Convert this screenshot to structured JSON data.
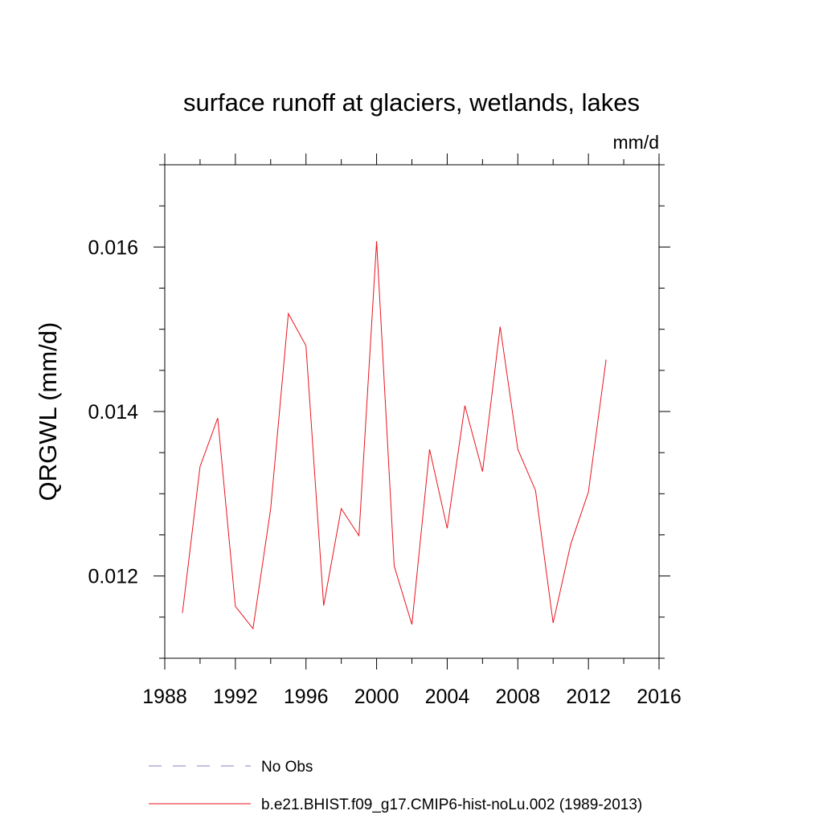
{
  "chart_data": {
    "type": "line",
    "title": "surface runoff at glaciers, wetlands, lakes",
    "units": "mm/d",
    "ylabel": "QRGWL  (mm/d)",
    "xlabel": "",
    "xlim": [
      1988,
      2016
    ],
    "ylim": [
      0.011,
      0.017
    ],
    "x_ticks": [
      1988,
      1992,
      1996,
      2000,
      2004,
      2008,
      2012,
      2016
    ],
    "x_tick_labels": [
      "1988",
      "1992",
      "1996",
      "2000",
      "2004",
      "2008",
      "2012",
      "2016"
    ],
    "y_ticks": [
      0.012,
      0.014,
      0.016
    ],
    "y_tick_labels": [
      "0.012",
      "0.014",
      "0.016"
    ],
    "grid": false,
    "legend_position": "bottom",
    "series": [
      {
        "name": "No Obs",
        "color": "#8080c0",
        "dash": true,
        "x": [],
        "y": []
      },
      {
        "name": "b.e21.BHIST.f09_g17.CMIP6-hist-noLu.002 (1989-2013)",
        "color": "#e8141e",
        "dash": false,
        "x": [
          1989,
          1990,
          1991,
          1992,
          1993,
          1994,
          1995,
          1996,
          1997,
          1998,
          1999,
          2000,
          2001,
          2002,
          2003,
          2004,
          2005,
          2006,
          2007,
          2008,
          2009,
          2010,
          2011,
          2012,
          2013
        ],
        "y": [
          0.01155,
          0.01333,
          0.01392,
          0.01163,
          0.01136,
          0.01282,
          0.01519,
          0.0148,
          0.01164,
          0.01282,
          0.01249,
          0.01607,
          0.01212,
          0.01141,
          0.01354,
          0.01258,
          0.01407,
          0.01327,
          0.01503,
          0.01354,
          0.01304,
          0.01143,
          0.01239,
          0.01302,
          0.01463
        ]
      }
    ]
  }
}
